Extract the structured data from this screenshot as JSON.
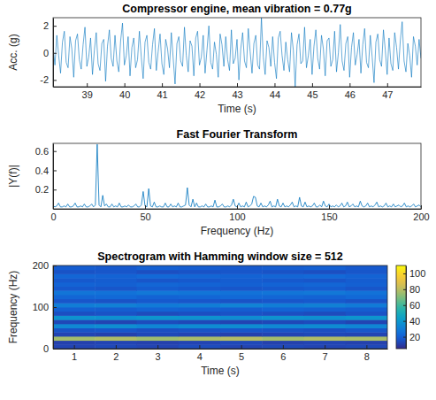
{
  "chart_data": [
    {
      "type": "line",
      "title": "Compressor engine, mean vibration = 0.77g",
      "x_label": "Time (s)",
      "y_label": "Acc. (g)",
      "color": "#0072bd",
      "xlim": [
        38.1,
        47.9
      ],
      "ylim": [
        -2.5,
        2.6
      ],
      "xticks": [
        39,
        40,
        41,
        42,
        43,
        44,
        45,
        46,
        47
      ],
      "yticks": [
        -2,
        0,
        2
      ],
      "x": [
        38.1,
        38.15,
        38.2,
        38.25,
        38.3,
        38.35,
        38.4,
        38.45,
        38.5,
        38.55,
        38.6,
        38.65,
        38.7,
        38.75,
        38.8,
        38.85,
        38.9,
        38.95,
        39.0,
        39.05,
        39.1,
        39.15,
        39.2,
        39.25,
        39.3,
        39.35,
        39.4,
        39.45,
        39.5,
        39.55,
        39.6,
        39.65,
        39.7,
        39.75,
        39.8,
        39.85,
        39.9,
        39.95,
        40.0,
        40.05,
        40.1,
        40.15,
        40.2,
        40.25,
        40.3,
        40.35,
        40.4,
        40.45,
        40.5,
        40.55,
        40.6,
        40.65,
        40.7,
        40.75,
        40.8,
        40.85,
        40.9,
        40.95,
        41.0,
        41.05,
        41.1,
        41.15,
        41.2,
        41.25,
        41.3,
        41.35,
        41.4,
        41.45,
        41.5,
        41.55,
        41.6,
        41.65,
        41.7,
        41.75,
        41.8,
        41.85,
        41.9,
        41.95,
        42.0,
        42.05,
        42.1,
        42.15,
        42.2,
        42.25,
        42.3,
        42.35,
        42.4,
        42.45,
        42.5,
        42.55,
        42.6,
        42.65,
        42.7,
        42.75,
        42.8,
        42.85,
        42.9,
        42.95,
        43.0,
        43.05,
        43.1,
        43.15,
        43.2,
        43.25,
        43.3,
        43.35,
        43.4,
        43.45,
        43.5,
        43.55,
        43.6,
        43.65,
        43.7,
        43.75,
        43.8,
        43.85,
        43.9,
        43.95,
        44.0,
        44.05,
        44.1,
        44.15,
        44.2,
        44.25,
        44.3,
        44.35,
        44.4,
        44.45,
        44.5,
        44.55,
        44.6,
        44.65,
        44.7,
        44.75,
        44.8,
        44.85,
        44.9,
        44.95,
        45.0,
        45.05,
        45.1,
        45.15,
        45.2,
        45.25,
        45.3,
        45.35,
        45.4,
        45.45,
        45.5,
        45.55,
        45.6,
        45.65,
        45.7,
        45.75,
        45.8,
        45.85,
        45.9,
        45.95,
        46.0,
        46.05,
        46.1,
        46.15,
        46.2,
        46.25,
        46.3,
        46.35,
        46.4,
        46.45,
        46.5,
        46.55,
        46.6,
        46.65,
        46.7,
        46.75,
        46.8,
        46.85,
        46.9,
        46.95,
        47.0,
        47.05,
        47.1,
        47.15,
        47.2,
        47.25,
        47.3,
        47.35,
        47.4,
        47.45,
        47.5,
        47.55,
        47.6,
        47.65,
        47.7,
        47.75,
        47.8,
        47.85,
        47.9
      ],
      "values": [
        0.4,
        -0.9,
        1.3,
        -0.2,
        -1.5,
        0.8,
        1.6,
        -0.7,
        -1.1,
        1.2,
        0.3,
        -1.8,
        0.9,
        1.4,
        -0.5,
        -1.2,
        0.6,
        1.9,
        -1.0,
        -0.3,
        1.1,
        -1.6,
        0.2,
        1.5,
        -0.8,
        -1.3,
        0.7,
        1.0,
        -2.1,
        0.5,
        1.7,
        -0.4,
        -1.0,
        1.3,
        -0.6,
        -1.4,
        0.9,
        2.2,
        -0.9,
        -0.2,
        1.2,
        -1.7,
        0.4,
        1.1,
        -1.1,
        -0.5,
        1.6,
        -0.3,
        -1.9,
        0.8,
        1.3,
        -0.7,
        -1.2,
        0.6,
        1.8,
        -1.3,
        0.1,
        1.4,
        -0.8,
        -1.6,
        1.0,
        0.3,
        -1.1,
        1.5,
        -0.4,
        -2.3,
        0.7,
        1.2,
        -0.6,
        -1.0,
        1.9,
        -0.2,
        -1.4,
        0.9,
        0.5,
        -1.7,
        1.1,
        1.6,
        -0.9,
        -0.3,
        1.3,
        -1.5,
        0.2,
        2.0,
        -0.7,
        -1.2,
        0.8,
        -0.1,
        -1.8,
        1.4,
        0.6,
        -1.0,
        1.2,
        -0.5,
        -1.3,
        1.7,
        -0.8,
        -0.4,
        1.0,
        -2.0,
        0.3,
        1.5,
        -0.6,
        -1.1,
        1.8,
        0.1,
        -1.5,
        0.7,
        1.3,
        -0.9,
        -1.2,
        2.6,
        -0.3,
        -1.6,
        0.9,
        0.4,
        -1.0,
        1.2,
        -0.7,
        -1.9,
        1.1,
        1.6,
        -0.2,
        -1.3,
        0.8,
        -0.5,
        -1.4,
        1.5,
        0.2,
        -2.5,
        0.6,
        1.4,
        -0.8,
        -0.6,
        1.9,
        -1.1,
        -0.2,
        1.0,
        -1.6,
        0.5,
        1.7,
        -0.4,
        -1.2,
        1.3,
        0.3,
        -1.7,
        0.9,
        1.1,
        -1.0,
        -0.5,
        1.6,
        -1.4,
        0.0,
        2.1,
        -0.6,
        -1.3,
        0.7,
        1.2,
        -1.8,
        0.4,
        1.5,
        -0.9,
        -0.1,
        1.0,
        -1.5,
        0.6,
        1.8,
        -0.7,
        -1.1,
        1.3,
        -0.3,
        -2.2,
        0.8,
        1.4,
        -0.5,
        -1.0,
        1.7,
        0.2,
        -1.6,
        1.1,
        -0.8,
        -1.3,
        1.5,
        0.4,
        -1.2,
        0.9,
        2.3,
        -0.6,
        -1.4,
        0.7,
        -0.2,
        -1.8,
        1.2,
        0.5,
        -0.9,
        1.0,
        -0.4
      ]
    },
    {
      "type": "line",
      "title": "Fast Fourier Transform",
      "x_label": "Frequency (Hz)",
      "y_label": "|Y(f)|",
      "color": "#0072bd",
      "xlim": [
        0,
        200
      ],
      "ylim": [
        0,
        0.68
      ],
      "xticks": [
        0,
        50,
        100,
        150,
        200
      ],
      "yticks": [
        0.2,
        0.4,
        0.6
      ],
      "x": [
        0,
        1,
        2,
        3,
        4,
        5,
        6,
        7,
        8,
        9,
        10,
        11,
        12,
        13,
        14,
        15,
        16,
        17,
        18,
        19,
        20,
        21,
        22,
        23,
        24,
        25,
        26,
        27,
        28,
        29,
        30,
        31,
        32,
        33,
        34,
        35,
        36,
        37,
        38,
        39,
        40,
        41,
        42,
        43,
        44,
        45,
        46,
        47,
        48,
        49,
        50,
        51,
        52,
        53,
        54,
        55,
        56,
        57,
        58,
        59,
        60,
        61,
        62,
        63,
        64,
        65,
        66,
        67,
        68,
        69,
        70,
        71,
        72,
        73,
        74,
        75,
        76,
        77,
        78,
        79,
        80,
        81,
        82,
        83,
        84,
        85,
        86,
        87,
        88,
        89,
        90,
        91,
        92,
        93,
        94,
        95,
        96,
        97,
        98,
        99,
        100,
        101,
        102,
        103,
        104,
        105,
        106,
        107,
        108,
        109,
        110,
        111,
        112,
        113,
        114,
        115,
        116,
        117,
        118,
        119,
        120,
        121,
        122,
        123,
        124,
        125,
        126,
        127,
        128,
        129,
        130,
        131,
        132,
        133,
        134,
        135,
        136,
        137,
        138,
        139,
        140,
        141,
        142,
        143,
        144,
        145,
        146,
        147,
        148,
        149,
        150,
        151,
        152,
        153,
        154,
        155,
        156,
        157,
        158,
        159,
        160,
        161,
        162,
        163,
        164,
        165,
        166,
        167,
        168,
        169,
        170,
        171,
        172,
        173,
        174,
        175,
        176,
        177,
        178,
        179,
        180,
        181,
        182,
        183,
        184,
        185,
        186,
        187,
        188,
        189,
        190,
        191,
        192,
        193,
        194,
        195,
        196,
        197,
        198,
        199,
        200
      ],
      "values": [
        0.03,
        0.02,
        0.03,
        0.06,
        0.02,
        0.02,
        0.03,
        0.02,
        0.05,
        0.02,
        0.02,
        0.03,
        0.06,
        0.02,
        0.02,
        0.03,
        0.02,
        0.05,
        0.02,
        0.02,
        0.03,
        0.05,
        0.02,
        0.04,
        0.67,
        0.04,
        0.02,
        0.14,
        0.03,
        0.05,
        0.02,
        0.02,
        0.05,
        0.02,
        0.03,
        0.02,
        0.06,
        0.02,
        0.02,
        0.03,
        0.02,
        0.04,
        0.02,
        0.02,
        0.03,
        0.05,
        0.02,
        0.02,
        0.04,
        0.18,
        0.03,
        0.02,
        0.21,
        0.03,
        0.02,
        0.07,
        0.02,
        0.02,
        0.03,
        0.02,
        0.02,
        0.06,
        0.02,
        0.02,
        0.05,
        0.02,
        0.03,
        0.02,
        0.06,
        0.02,
        0.02,
        0.03,
        0.04,
        0.22,
        0.04,
        0.02,
        0.1,
        0.02,
        0.06,
        0.02,
        0.02,
        0.03,
        0.02,
        0.05,
        0.02,
        0.02,
        0.03,
        0.02,
        0.09,
        0.02,
        0.02,
        0.03,
        0.05,
        0.02,
        0.02,
        0.03,
        0.02,
        0.04,
        0.1,
        0.03,
        0.02,
        0.06,
        0.02,
        0.03,
        0.02,
        0.07,
        0.02,
        0.03,
        0.05,
        0.13,
        0.12,
        0.03,
        0.02,
        0.06,
        0.02,
        0.03,
        0.02,
        0.04,
        0.08,
        0.02,
        0.03,
        0.02,
        0.1,
        0.03,
        0.02,
        0.06,
        0.02,
        0.03,
        0.02,
        0.04,
        0.07,
        0.02,
        0.03,
        0.02,
        0.12,
        0.03,
        0.02,
        0.07,
        0.02,
        0.03,
        0.02,
        0.03,
        0.06,
        0.02,
        0.02,
        0.04,
        0.02,
        0.08,
        0.03,
        0.02,
        0.05,
        0.02,
        0.03,
        0.02,
        0.04,
        0.02,
        0.03,
        0.06,
        0.02,
        0.03,
        0.07,
        0.02,
        0.03,
        0.05,
        0.02,
        0.03,
        0.02,
        0.08,
        0.03,
        0.02,
        0.03,
        0.06,
        0.02,
        0.03,
        0.02,
        0.04,
        0.07,
        0.02,
        0.03,
        0.02,
        0.03,
        0.06,
        0.02,
        0.03,
        0.02,
        0.05,
        0.02,
        0.03,
        0.04,
        0.02,
        0.03,
        0.06,
        0.02,
        0.03,
        0.02,
        0.03,
        0.05,
        0.02,
        0.03,
        0.04,
        0.02
      ]
    },
    {
      "type": "heatmap",
      "title": "Spectrogram with Hamming window size = 512",
      "x_label": "Time (s)",
      "y_label": "Frequency (Hz)",
      "xlim": [
        0.5,
        8.5
      ],
      "ylim": [
        0,
        200
      ],
      "xticks": [
        1,
        2,
        3,
        4,
        5,
        6,
        7,
        8
      ],
      "yticks": [
        0,
        100,
        200
      ],
      "x": [
        1,
        2,
        3,
        4,
        5,
        6,
        7,
        8
      ],
      "y": [
        5,
        15,
        25,
        35,
        45,
        55,
        65,
        75,
        85,
        95,
        105,
        115,
        125,
        135,
        145,
        155,
        165,
        175,
        185,
        195
      ],
      "values": [
        [
          12,
          13,
          12,
          14,
          12,
          13,
          12,
          13
        ],
        [
          11,
          12,
          11,
          12,
          13,
          11,
          12,
          11
        ],
        [
          76,
          78,
          75,
          77,
          79,
          76,
          78,
          77
        ],
        [
          12,
          11,
          13,
          12,
          11,
          12,
          13,
          12
        ],
        [
          16,
          17,
          15,
          16,
          17,
          16,
          15,
          17
        ],
        [
          34,
          36,
          33,
          35,
          36,
          34,
          35,
          33
        ],
        [
          13,
          12,
          14,
          13,
          12,
          13,
          14,
          12
        ],
        [
          38,
          37,
          39,
          38,
          36,
          38,
          37,
          39
        ],
        [
          15,
          16,
          14,
          15,
          16,
          15,
          14,
          16
        ],
        [
          20,
          19,
          21,
          20,
          19,
          21,
          20,
          19
        ],
        [
          30,
          31,
          29,
          30,
          32,
          30,
          31,
          29
        ],
        [
          17,
          16,
          18,
          17,
          16,
          17,
          18,
          16
        ],
        [
          22,
          23,
          21,
          22,
          23,
          22,
          21,
          23
        ],
        [
          27,
          26,
          28,
          27,
          26,
          27,
          28,
          26
        ],
        [
          18,
          17,
          19,
          18,
          17,
          18,
          19,
          17
        ],
        [
          21,
          20,
          22,
          21,
          20,
          21,
          22,
          20
        ],
        [
          18,
          19,
          17,
          18,
          19,
          18,
          17,
          19
        ],
        [
          22,
          21,
          23,
          22,
          21,
          22,
          23,
          21
        ],
        [
          16,
          17,
          15,
          16,
          17,
          16,
          15,
          17
        ],
        [
          19,
          18,
          20,
          19,
          18,
          19,
          20,
          18
        ]
      ],
      "colorbar": {
        "range": [
          5,
          110
        ],
        "ticks": [
          20,
          40,
          60,
          80,
          100
        ]
      }
    }
  ]
}
